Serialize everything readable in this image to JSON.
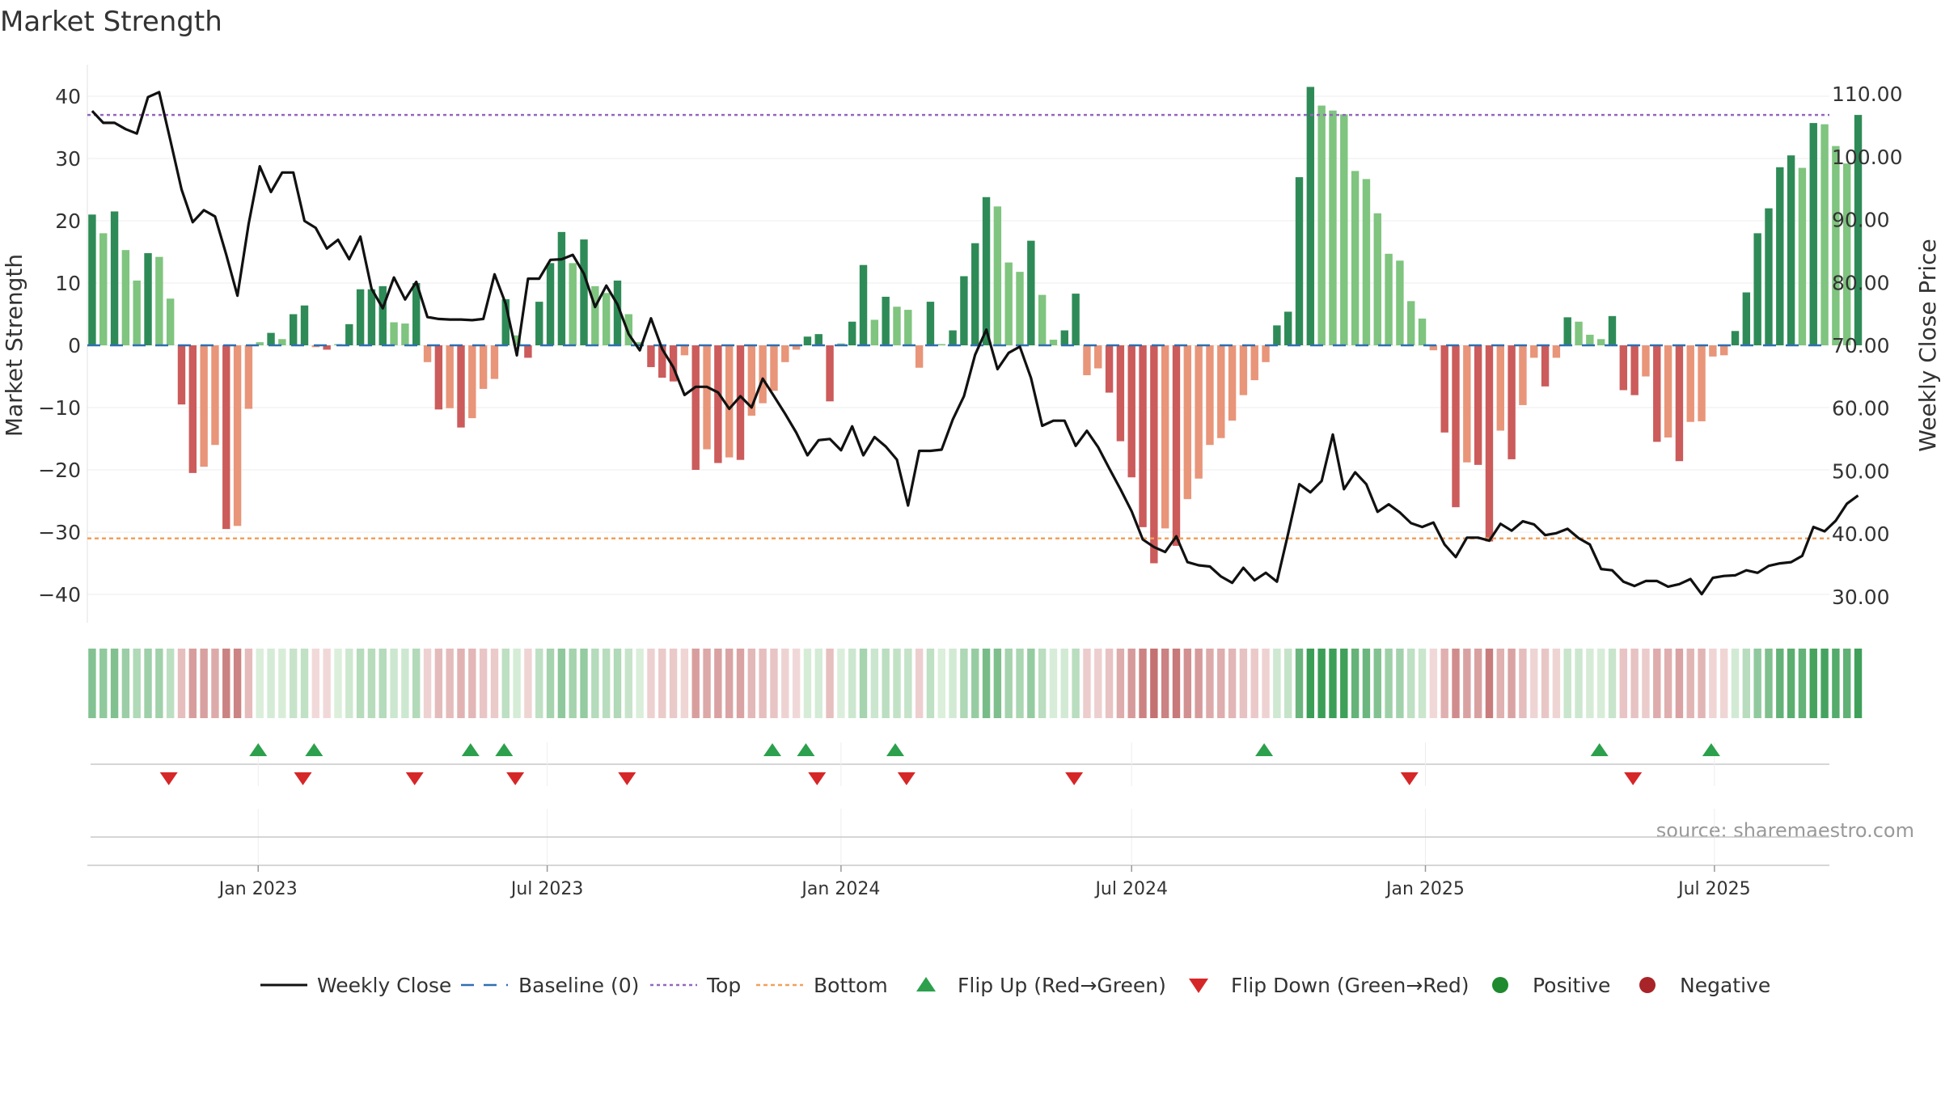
{
  "title": "Market Strength",
  "source": "source: sharemaestro.com",
  "colors": {
    "line": "#111111",
    "baseline": "#2f6fb1",
    "top": "#9467bd",
    "bottom": "#f2a05a",
    "flip_up": "#2ca04c",
    "flip_down": "#d62728",
    "pos_strong": "#2e8b57",
    "pos_weak": "#7fc47f",
    "neg_strong": "#cc5b5b",
    "neg_weak": "#e8957a"
  },
  "chart_data": {
    "type": "bar",
    "title": "Market Strength",
    "ylabel_left": "Market Strength",
    "ylabel_right": "Weekly Close Price",
    "ylim_left": [
      -45,
      45
    ],
    "ylim_right": [
      25,
      115
    ],
    "yticks_left": [
      "40",
      "30",
      "20",
      "10",
      "0",
      "−10",
      "−20",
      "−30",
      "−40"
    ],
    "yticks_right": [
      "110.00",
      "100.00",
      "90.00",
      "80.00",
      "70.00",
      "60.00",
      "50.00",
      "40.00",
      "30.00"
    ],
    "x_range": [
      "2022-09-19",
      "2025-09-08"
    ],
    "xticks": [
      {
        "date": "2023-01-01",
        "label": "Jan 2023"
      },
      {
        "date": "2023-07-01",
        "label": "Jul 2023"
      },
      {
        "date": "2024-01-01",
        "label": "Jan 2024"
      },
      {
        "date": "2024-07-01",
        "label": "Jul 2024"
      },
      {
        "date": "2025-01-01",
        "label": "Jan 2025"
      },
      {
        "date": "2025-07-01",
        "label": "Jul 2025"
      }
    ],
    "start_date": "2022-09-19",
    "interval_days": 7,
    "top_level": 37,
    "bottom_level": -31,
    "strength": [
      21,
      18,
      21.5,
      15.3,
      10.4,
      14.8,
      14.2,
      7.5,
      -9.5,
      -20.5,
      -19.5,
      -16,
      -29.5,
      -29,
      -10.2,
      0.5,
      2,
      1,
      5,
      6.4,
      -0.3,
      -0.7,
      0.2,
      3.4,
      9,
      9,
      9.5,
      3.7,
      3.5,
      10,
      -2.7,
      -10.3,
      -10.1,
      -13.2,
      -11.7,
      -7,
      -5.4,
      7.4,
      1.6,
      -2,
      7,
      13.2,
      18.2,
      13.2,
      17,
      9.5,
      8.4,
      10.4,
      5,
      0.5,
      -3.5,
      -5.2,
      -5.8,
      -1.6,
      -20,
      -16.7,
      -18.9,
      -18,
      -18.4,
      -11.3,
      -9.3,
      -7.3,
      -2.7,
      -0.7,
      1.4,
      1.8,
      -9,
      0.3,
      3.8,
      12.9,
      4.1,
      7.8,
      6.2,
      5.7,
      -3.6,
      7,
      0.2,
      2.4,
      11.1,
      16.4,
      23.8,
      22.3,
      13.3,
      11.8,
      16.8,
      8.1,
      0.9,
      2.4,
      8.3,
      -4.8,
      -3.7,
      -7.6,
      -15.4,
      -21.2,
      -29.2,
      -35,
      -29.4,
      -32.2,
      -24.7,
      -21.4,
      -16,
      -14.9,
      -12.1,
      -8,
      -5.6,
      -2.7,
      3.2,
      5.4,
      27,
      41.5,
      38.5,
      37.7,
      37.1,
      28,
      26.7,
      21.2,
      14.7,
      13.6,
      7.1,
      4.3,
      -0.8,
      -14,
      -26,
      -18.8,
      -19.2,
      -31.5,
      -13.7,
      -18.3,
      -9.6,
      -2,
      -6.6,
      -2,
      4.5,
      3.8,
      1.7,
      1,
      4.7,
      -7.2,
      -8,
      -5,
      -15.5,
      -14.8,
      -18.6,
      -12.3,
      -12.2,
      -1.8,
      -1.6,
      2.3,
      8.5,
      18,
      22,
      28.6,
      30.5,
      28.5,
      35.7,
      35.5,
      32,
      29.2,
      37
    ],
    "weekly_close": [
      107.3,
      105.4,
      105.4,
      104.4,
      103.7,
      109.5,
      110.3,
      102.6,
      94.8,
      89.6,
      91.5,
      90.5,
      84.4,
      77.9,
      89.3,
      98.5,
      94.4,
      97.5,
      97.5,
      89.8,
      88.7,
      85.4,
      86.8,
      83.7,
      87.3,
      79,
      75.9,
      80.8,
      77.3,
      80.1,
      74.5,
      74.2,
      74.1,
      74.1,
      74,
      74.2,
      81.3,
      76.6,
      68.4,
      80.6,
      80.6,
      83.6,
      83.7,
      84.4,
      81.4,
      76.1,
      79.5,
      76.5,
      71.8,
      69.2,
      74.3,
      69.4,
      66.5,
      62.1,
      63.4,
      63.4,
      62.5,
      59.9,
      61.9,
      60.1,
      64.7,
      61.9,
      59.1,
      56.1,
      52.5,
      54.9,
      55.1,
      53.3,
      57.1,
      52.5,
      55.4,
      53.9,
      51.8,
      44.5,
      53.2,
      53.2,
      53.4,
      58.2,
      61.9,
      68.5,
      72.5,
      66.2,
      68.8,
      69.8,
      64.8,
      57.2,
      58,
      58,
      54,
      56.4,
      53.8,
      50.4,
      47.1,
      43.6,
      39.1,
      37.9,
      37.1,
      39.6,
      35.5,
      35,
      34.8,
      33.2,
      32.2,
      34.6,
      32.6,
      33.8,
      32.4,
      40,
      47.9,
      46.6,
      48.4,
      55.8,
      47.1,
      49.8,
      47.9,
      43.5,
      44.7,
      43.4,
      41.7,
      41.1,
      41.8,
      38.3,
      36.3,
      39.4,
      39.4,
      38.9,
      41.6,
      40.5,
      42,
      41.5,
      39.8,
      40.1,
      40.8,
      39.3,
      38.3,
      34.4,
      34.2,
      32.4,
      31.7,
      32.5,
      32.5,
      31.6,
      32,
      32.8,
      30.4,
      33,
      33.3,
      33.4,
      34.2,
      33.8,
      34.9,
      35.3,
      35.5,
      36.5,
      41.1,
      40.4,
      42.1,
      44.8,
      46.1
    ],
    "flip_up_dates": [
      "2023-01-01",
      "2023-02-05",
      "2023-05-14",
      "2023-06-04",
      "2023-11-19",
      "2023-12-10",
      "2024-02-04",
      "2024-09-22",
      "2025-04-20",
      "2025-06-29"
    ],
    "flip_down_dates": [
      "2022-11-06",
      "2023-01-29",
      "2023-04-09",
      "2023-06-11",
      "2023-08-20",
      "2023-12-17",
      "2024-02-11",
      "2024-05-26",
      "2024-12-22",
      "2025-05-11"
    ],
    "legend": [
      {
        "key": "weekly_close",
        "label": "Weekly Close"
      },
      {
        "key": "baseline",
        "label": "Baseline (0)"
      },
      {
        "key": "top",
        "label": "Top"
      },
      {
        "key": "bottom",
        "label": "Bottom"
      },
      {
        "key": "flip_up",
        "label": "Flip Up (Red→Green)"
      },
      {
        "key": "flip_down",
        "label": "Flip Down (Green→Red)"
      },
      {
        "key": "positive",
        "label": "Positive"
      },
      {
        "key": "negative",
        "label": "Negative"
      }
    ],
    "legend_position": "bottom-center",
    "grid": true
  }
}
